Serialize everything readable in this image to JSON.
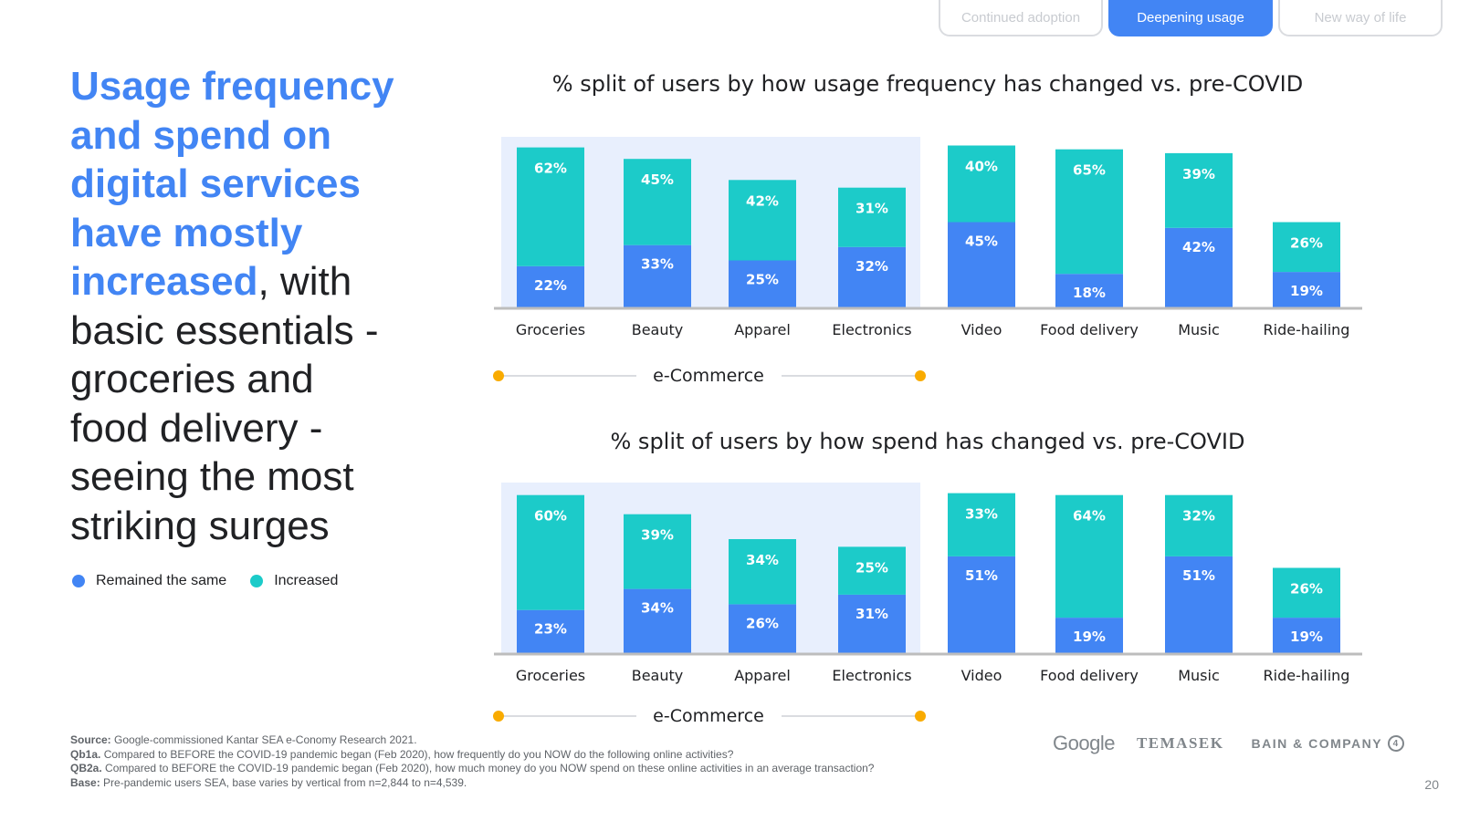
{
  "tabs": [
    {
      "label": "Continued adoption",
      "active": false
    },
    {
      "label": "Deepening usage",
      "active": true
    },
    {
      "label": "New way of life",
      "active": false
    }
  ],
  "headline": {
    "highlight_lines": [
      "Usage frequency",
      "and spend on",
      "digital services",
      "have mostly",
      "increased"
    ],
    "rest_first": ", with",
    "rest_lines": [
      "basic essentials -",
      "groceries and",
      "food delivery -",
      "seeing the most",
      "striking surges"
    ]
  },
  "legend": [
    {
      "label": "Remained the same",
      "color": "#4285f4"
    },
    {
      "label": "Increased",
      "color": "#1ccbc9"
    }
  ],
  "colors": {
    "remained": "#4285f4",
    "increased": "#1ccbc9",
    "ecommerce_bg": "#e8effd",
    "accent_dot": "#f9ab00",
    "axis": "#bdbdbd"
  },
  "chart_data": [
    {
      "type": "bar",
      "stacked": true,
      "title": "% split of users by how usage frequency has changed vs. pre-COVID",
      "categories": [
        "Groceries",
        "Beauty",
        "Apparel",
        "Electronics",
        "Video",
        "Food delivery",
        "Music",
        "Ride-hailing"
      ],
      "series": [
        {
          "name": "Remained the same",
          "values": [
            22,
            33,
            25,
            32,
            45,
            18,
            42,
            19
          ]
        },
        {
          "name": "Increased",
          "values": [
            62,
            45,
            42,
            31,
            40,
            65,
            39,
            26
          ]
        }
      ],
      "group": {
        "label": "e-Commerce",
        "categories": [
          "Groceries",
          "Beauty",
          "Apparel",
          "Electronics"
        ]
      },
      "legend_position": "left"
    },
    {
      "type": "bar",
      "stacked": true,
      "title": "% split of users by how spend has changed vs. pre-COVID",
      "categories": [
        "Groceries",
        "Beauty",
        "Apparel",
        "Electronics",
        "Video",
        "Food delivery",
        "Music",
        "Ride-hailing"
      ],
      "series": [
        {
          "name": "Remained the same",
          "values": [
            23,
            34,
            26,
            31,
            51,
            19,
            51,
            19
          ]
        },
        {
          "name": "Increased",
          "values": [
            60,
            39,
            34,
            25,
            33,
            64,
            32,
            26
          ]
        }
      ],
      "group": {
        "label": "e-Commerce",
        "categories": [
          "Groceries",
          "Beauty",
          "Apparel",
          "Electronics"
        ]
      },
      "legend_position": "left"
    }
  ],
  "footnote": {
    "source_label": "Source:",
    "source": "Google-commissioned Kantar SEA e-Conomy Research 2021.",
    "qb1a_label": "Qb1a.",
    "qb1a": "Compared to BEFORE the COVID-19 pandemic began (Feb 2020), how frequently do you NOW do the following online activities?",
    "qb2a_label": "QB2a.",
    "qb2a": "Compared to BEFORE the COVID-19 pandemic began (Feb 2020), how much money do you NOW spend on these online activities in an average transaction?",
    "base_label": "Base:",
    "base": "Pre-pandemic users SEA, base varies by vertical from n=2,844 to n=4,539."
  },
  "logos": {
    "google": "Google",
    "temasek": "TEMASEK",
    "bain": "BAIN & COMPANY",
    "bain_mark": "4"
  },
  "page_number": "20"
}
